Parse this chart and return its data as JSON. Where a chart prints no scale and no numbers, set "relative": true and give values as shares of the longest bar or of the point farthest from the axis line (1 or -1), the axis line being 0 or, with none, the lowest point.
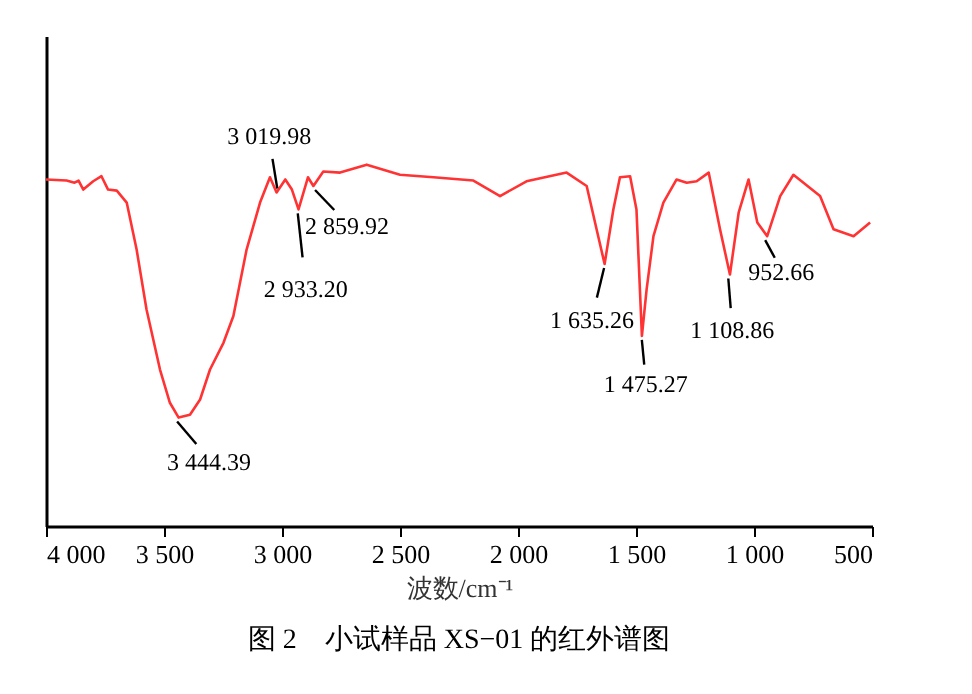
{
  "chart_data": {
    "type": "line",
    "title": "图 2　小试样品 XS−01 的红外谱图",
    "xlabel": "波数/cm⁻¹",
    "relative": true,
    "tick_labels": "x",
    "grid": false,
    "marker": "none",
    "line_style": "solid",
    "xlim": [
      4000,
      500
    ],
    "xticks": [
      {
        "value": 4000,
        "label": "4 000"
      },
      {
        "value": 3500,
        "label": "3 500"
      },
      {
        "value": 3000,
        "label": "3 000"
      },
      {
        "value": 2500,
        "label": "2 500"
      },
      {
        "value": 2000,
        "label": "2 000"
      },
      {
        "value": 1500,
        "label": "1 500"
      },
      {
        "value": 1000,
        "label": "1 000"
      },
      500
    ],
    "x": [
      4000,
      3913,
      3879,
      3862,
      3842,
      3800,
      3765,
      3737,
      3700,
      3658,
      3616,
      3574,
      3517,
      3475,
      3438,
      3390,
      3347,
      3305,
      3248,
      3206,
      3150,
      3093,
      3051,
      3023,
      2986,
      2958,
      2930,
      2890,
      2867,
      2825,
      2754,
      2641,
      2500,
      2358,
      2189,
      2076,
      1964,
      1794,
      1709,
      1667,
      1633,
      1596,
      1568,
      1525,
      1498,
      1475,
      1455,
      1426,
      1384,
      1328,
      1285,
      1243,
      1192,
      1144,
      1102,
      1065,
      1023,
      986,
      944,
      889,
      833,
      720,
      663,
      578,
      508
    ],
    "series": [
      {
        "color": "#ff3333",
        "values": [
          0.959,
          0.956,
          0.95,
          0.956,
          0.931,
          0.954,
          0.968,
          0.931,
          0.928,
          0.895,
          0.765,
          0.599,
          0.433,
          0.341,
          0.3,
          0.308,
          0.35,
          0.433,
          0.507,
          0.581,
          0.765,
          0.895,
          0.965,
          0.923,
          0.959,
          0.931,
          0.876,
          0.965,
          0.941,
          0.981,
          0.978,
          1.0,
          0.972,
          0.965,
          0.956,
          0.913,
          0.954,
          0.978,
          0.941,
          0.821,
          0.725,
          0.876,
          0.965,
          0.968,
          0.876,
          0.526,
          0.655,
          0.802,
          0.895,
          0.959,
          0.95,
          0.954,
          0.978,
          0.821,
          0.696,
          0.867,
          0.959,
          0.84,
          0.802,
          0.913,
          0.972,
          0.913,
          0.821,
          0.802,
          0.84
        ]
      }
    ],
    "annotations": [
      {
        "text": "3 444.39",
        "x": 3444.39,
        "y": 0.3
      },
      {
        "text": "3 019.98",
        "x": 3019.98,
        "y": 0.923
      },
      {
        "text": "2 933.20",
        "x": 2933.2,
        "y": 0.876
      },
      {
        "text": "2 859.92",
        "x": 2859.92,
        "y": 0.941
      },
      {
        "text": "1 635.26",
        "x": 1635.26,
        "y": 0.725
      },
      {
        "text": "1 475.27",
        "x": 1475.27,
        "y": 0.526
      },
      {
        "text": "1 108.86",
        "x": 1108.86,
        "y": 0.696
      },
      {
        "text": "952.66",
        "x": 952.66,
        "y": 0.802
      }
    ]
  }
}
